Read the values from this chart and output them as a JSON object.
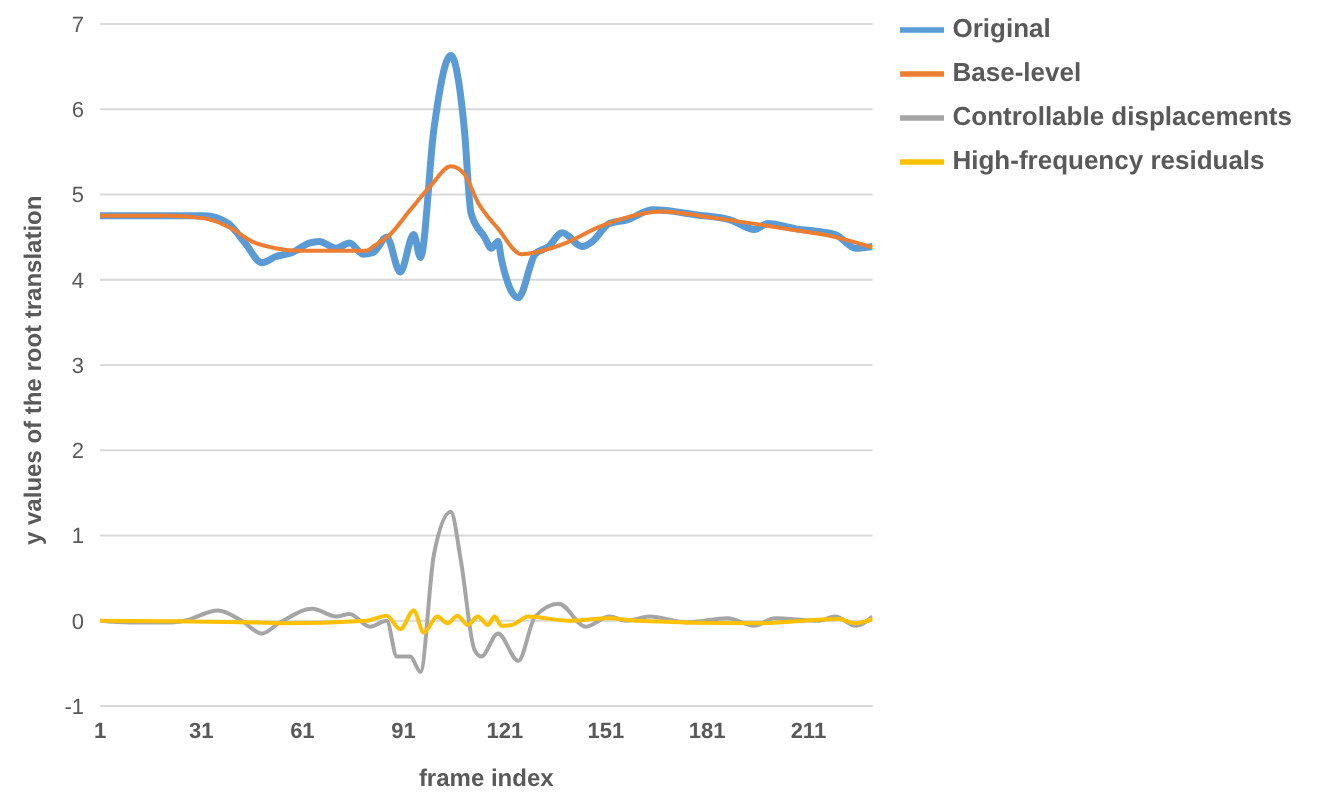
{
  "chart_data": {
    "type": "line",
    "xlabel": "frame index",
    "ylabel": "y values of the root translation",
    "xlim": [
      1,
      230
    ],
    "xticks": [
      1,
      31,
      61,
      91,
      121,
      151,
      181,
      211
    ],
    "ylim": [
      -1,
      7
    ],
    "yticks": [
      -1,
      0,
      1,
      2,
      3,
      4,
      5,
      6,
      7
    ],
    "grid": "y",
    "legend": "top right",
    "marker": "none",
    "line_style": "solid",
    "series": [
      {
        "name": "Original",
        "color": "#5b9bd5",
        "x": [
          1,
          22,
          32,
          39,
          44,
          49,
          53,
          58,
          63,
          66,
          71,
          75,
          79,
          82,
          86,
          90,
          94,
          96,
          100,
          105,
          109,
          111,
          115,
          117,
          119,
          120,
          125,
          130,
          134,
          138,
          144,
          147,
          152,
          157,
          165,
          178,
          188,
          195,
          199,
          207,
          219,
          225,
          230
        ],
        "values": [
          4.75,
          4.75,
          4.75,
          4.66,
          4.43,
          4.2,
          4.27,
          4.32,
          4.43,
          4.45,
          4.37,
          4.43,
          4.3,
          4.32,
          4.5,
          4.09,
          4.53,
          4.26,
          5.77,
          6.63,
          5.77,
          4.78,
          4.5,
          4.37,
          4.45,
          4.24,
          3.79,
          4.3,
          4.39,
          4.55,
          4.39,
          4.45,
          4.66,
          4.7,
          4.82,
          4.76,
          4.7,
          4.59,
          4.66,
          4.6,
          4.53,
          4.37,
          4.39
        ]
      },
      {
        "name": "Base-level",
        "color": "#ed7d31",
        "x": [
          1,
          22,
          32,
          40,
          46,
          53,
          60,
          70,
          80,
          82,
          87,
          93,
          99,
          105,
          109,
          113,
          119,
          126,
          132,
          139,
          149,
          158,
          167,
          184,
          204,
          219,
          230
        ],
        "values": [
          4.75,
          4.75,
          4.72,
          4.6,
          4.45,
          4.37,
          4.34,
          4.34,
          4.34,
          4.39,
          4.53,
          4.82,
          5.1,
          5.33,
          5.24,
          4.91,
          4.6,
          4.3,
          4.34,
          4.43,
          4.62,
          4.74,
          4.8,
          4.72,
          4.6,
          4.5,
          4.38
        ]
      },
      {
        "name": "Controllable displacements",
        "color": "#a5a5a5",
        "x": [
          1,
          10,
          22,
          26,
          36,
          43,
          49,
          54,
          64,
          71,
          75,
          81,
          86,
          89,
          93,
          96,
          100,
          105,
          108,
          112,
          114,
          119,
          125,
          130,
          137,
          145,
          152,
          157,
          164,
          175,
          187,
          195,
          201,
          214,
          219,
          225,
          230
        ],
        "values": [
          0,
          -0.02,
          -0.02,
          0,
          0.12,
          0,
          -0.15,
          -0.03,
          0.14,
          0.05,
          0.08,
          -0.07,
          0,
          -0.42,
          -0.42,
          -0.6,
          0.78,
          1.28,
          0.7,
          -0.34,
          -0.42,
          -0.15,
          -0.47,
          0.05,
          0.2,
          -0.07,
          0.05,
          0,
          0.05,
          -0.02,
          0.03,
          -0.06,
          0.03,
          0,
          0.05,
          -0.06,
          0.05
        ]
      },
      {
        "name": "High-frequency residuals",
        "color": "#ffc000",
        "x": [
          1,
          48,
          55,
          80,
          86,
          90,
          94,
          97,
          101,
          104,
          107,
          110,
          113,
          116,
          118,
          120,
          123,
          128,
          140,
          152,
          160,
          195,
          220,
          225,
          230
        ],
        "values": [
          0,
          -0.02,
          -0.03,
          0,
          0.06,
          -0.1,
          0.12,
          -0.14,
          0.05,
          -0.03,
          0.06,
          -0.05,
          0.05,
          -0.05,
          0.05,
          -0.06,
          -0.05,
          0.05,
          0,
          0.03,
          0,
          -0.03,
          0.02,
          -0.03,
          0.02
        ]
      }
    ]
  }
}
